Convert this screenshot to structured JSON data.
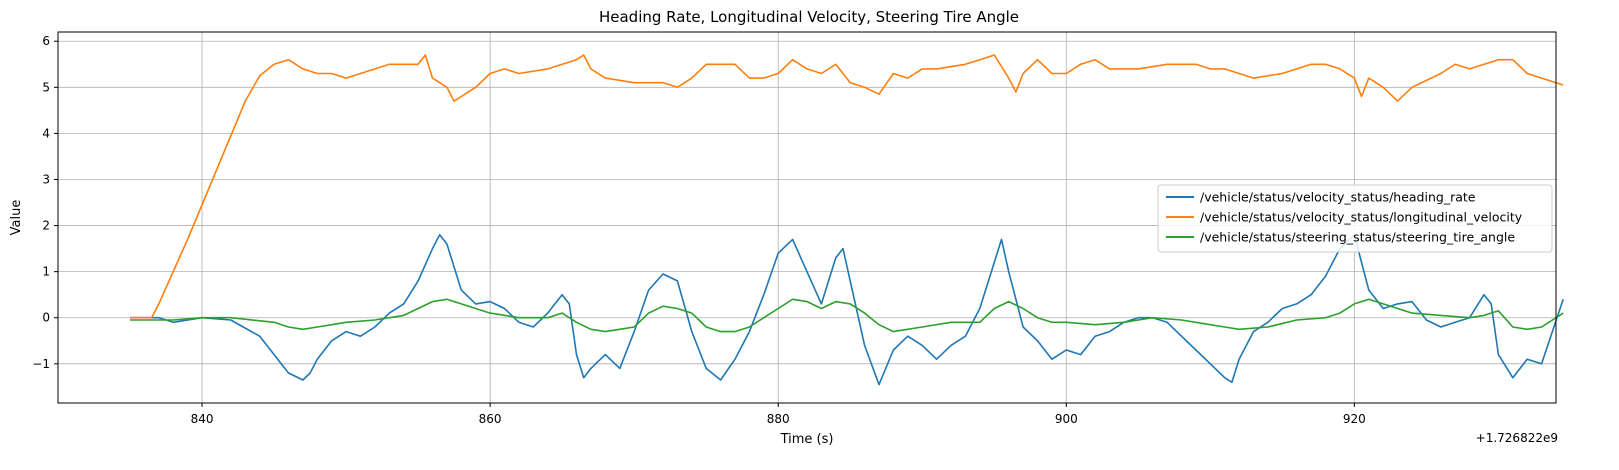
{
  "chart_data": {
    "type": "line",
    "title": "Heading Rate, Longitudinal Velocity, Steering Tire Angle",
    "xlabel": "Time (s)",
    "ylabel": "Value",
    "x_offset_label": "+1.726822e9",
    "xlim": [
      830,
      934
    ],
    "ylim": [
      -1.85,
      6.2
    ],
    "x_ticks": [
      840,
      860,
      880,
      900,
      920
    ],
    "y_ticks": [
      -1,
      0,
      1,
      2,
      3,
      4,
      5,
      6
    ],
    "grid": true,
    "legend_position": "center-right",
    "series": [
      {
        "name": "/vehicle/status/velocity_status/heading_rate",
        "color": "#1f77b4",
        "x": [
          835,
          837,
          838,
          840,
          842,
          844,
          845,
          846,
          847,
          847.5,
          848,
          849,
          850,
          851,
          852,
          853,
          854,
          855,
          856,
          856.5,
          857,
          858,
          859,
          860,
          861,
          862,
          863,
          864,
          865,
          865.5,
          866,
          866.5,
          867,
          868,
          869,
          870,
          871,
          872,
          873,
          874,
          875,
          876,
          877,
          878,
          879,
          880,
          881,
          882,
          883,
          884,
          884.5,
          885,
          886,
          887,
          888,
          889,
          890,
          891,
          892,
          893,
          894,
          895,
          895.5,
          896,
          897,
          898,
          899,
          900,
          901,
          902,
          903,
          904,
          905,
          906,
          907,
          908,
          909,
          910,
          911,
          911.5,
          912,
          913,
          914,
          915,
          916,
          917,
          918,
          919,
          920,
          921,
          922,
          923,
          924,
          925,
          926,
          927,
          928,
          929,
          929.5,
          930,
          931,
          932,
          933,
          934.5
        ],
        "values": [
          0.0,
          0.0,
          -0.1,
          0.0,
          -0.05,
          -0.4,
          -0.8,
          -1.2,
          -1.35,
          -1.2,
          -0.9,
          -0.5,
          -0.3,
          -0.4,
          -0.2,
          0.1,
          0.3,
          0.8,
          1.5,
          1.8,
          1.6,
          0.6,
          0.3,
          0.35,
          0.2,
          -0.1,
          -0.2,
          0.1,
          0.5,
          0.3,
          -0.8,
          -1.3,
          -1.1,
          -0.8,
          -1.1,
          -0.3,
          0.6,
          0.95,
          0.8,
          -0.3,
          -1.1,
          -1.35,
          -0.9,
          -0.3,
          0.5,
          1.4,
          1.7,
          1.0,
          0.3,
          1.3,
          1.5,
          0.8,
          -0.6,
          -1.45,
          -0.7,
          -0.4,
          -0.6,
          -0.9,
          -0.6,
          -0.4,
          0.2,
          1.2,
          1.7,
          1.0,
          -0.2,
          -0.5,
          -0.9,
          -0.7,
          -0.8,
          -0.4,
          -0.3,
          -0.1,
          0.0,
          0.0,
          -0.1,
          -0.4,
          -0.7,
          -1.0,
          -1.3,
          -1.4,
          -0.9,
          -0.3,
          -0.1,
          0.2,
          0.3,
          0.5,
          0.9,
          1.5,
          1.8,
          0.6,
          0.2,
          0.3,
          0.35,
          -0.05,
          -0.2,
          -0.1,
          0.0,
          0.5,
          0.3,
          -0.8,
          -1.3,
          -0.9,
          -1.0,
          0.4
        ]
      },
      {
        "name": "/vehicle/status/velocity_status/longitudinal_velocity",
        "color": "#ff7f0e",
        "x": [
          835,
          836.5,
          837,
          839,
          841,
          843,
          844,
          845,
          846,
          846.5,
          847,
          848,
          849,
          850,
          852,
          853,
          855,
          855.5,
          856,
          857,
          857.5,
          858,
          859,
          860,
          861,
          862,
          864,
          866,
          866.5,
          867,
          868,
          870,
          872,
          873,
          874,
          875,
          876,
          877,
          878,
          879,
          880,
          881,
          882,
          883,
          884,
          885,
          886,
          887,
          888,
          889,
          890,
          891,
          893,
          894,
          895,
          896,
          896.5,
          897,
          898,
          899,
          900,
          901,
          902,
          903,
          905,
          907,
          908,
          909,
          910,
          911,
          912,
          913,
          915,
          917,
          918,
          919,
          920,
          920.5,
          921,
          922,
          923,
          924,
          926,
          927,
          928,
          930,
          931,
          932,
          933,
          934.5
        ],
        "values": [
          0.0,
          0.0,
          0.3,
          1.7,
          3.2,
          4.7,
          5.25,
          5.5,
          5.6,
          5.5,
          5.4,
          5.3,
          5.3,
          5.2,
          5.4,
          5.5,
          5.5,
          5.7,
          5.2,
          5.0,
          4.7,
          4.8,
          5.0,
          5.3,
          5.4,
          5.3,
          5.4,
          5.6,
          5.7,
          5.4,
          5.2,
          5.1,
          5.1,
          5.0,
          5.2,
          5.5,
          5.5,
          5.5,
          5.2,
          5.2,
          5.3,
          5.6,
          5.4,
          5.3,
          5.5,
          5.1,
          5.0,
          4.85,
          5.3,
          5.2,
          5.4,
          5.4,
          5.5,
          5.6,
          5.7,
          5.2,
          4.9,
          5.3,
          5.6,
          5.3,
          5.3,
          5.5,
          5.6,
          5.4,
          5.4,
          5.5,
          5.5,
          5.5,
          5.4,
          5.4,
          5.3,
          5.2,
          5.3,
          5.5,
          5.5,
          5.4,
          5.2,
          4.8,
          5.2,
          5.0,
          4.7,
          5.0,
          5.3,
          5.5,
          5.4,
          5.6,
          5.6,
          5.3,
          5.2,
          5.05
        ]
      },
      {
        "name": "/vehicle/status/steering_status/steering_tire_angle",
        "color": "#2ca02c",
        "x": [
          835,
          838,
          840,
          842,
          845,
          846,
          847,
          848,
          849,
          850,
          852,
          853,
          854,
          855,
          856,
          857,
          858,
          860,
          862,
          864,
          865,
          866,
          867,
          868,
          869,
          870,
          871,
          872,
          873,
          874,
          875,
          876,
          877,
          878,
          879,
          880,
          881,
          882,
          883,
          884,
          885,
          886,
          887,
          888,
          890,
          892,
          894,
          895,
          896,
          897,
          898,
          899,
          900,
          902,
          904,
          906,
          908,
          910,
          911,
          912,
          914,
          916,
          918,
          919,
          920,
          921,
          922,
          923,
          924,
          926,
          928,
          929,
          930,
          931,
          932,
          933,
          934.5
        ],
        "values": [
          -0.05,
          -0.05,
          0.0,
          0.0,
          -0.1,
          -0.2,
          -0.25,
          -0.2,
          -0.15,
          -0.1,
          -0.05,
          0.0,
          0.05,
          0.2,
          0.35,
          0.4,
          0.3,
          0.1,
          0.0,
          0.0,
          0.1,
          -0.1,
          -0.25,
          -0.3,
          -0.25,
          -0.2,
          0.1,
          0.25,
          0.2,
          0.1,
          -0.2,
          -0.3,
          -0.3,
          -0.2,
          0.0,
          0.2,
          0.4,
          0.35,
          0.2,
          0.35,
          0.3,
          0.1,
          -0.15,
          -0.3,
          -0.2,
          -0.1,
          -0.1,
          0.2,
          0.35,
          0.2,
          0.0,
          -0.1,
          -0.1,
          -0.15,
          -0.1,
          0.0,
          -0.05,
          -0.15,
          -0.2,
          -0.25,
          -0.2,
          -0.05,
          0.0,
          0.1,
          0.3,
          0.4,
          0.3,
          0.2,
          0.1,
          0.05,
          0.0,
          0.05,
          0.15,
          -0.2,
          -0.25,
          -0.2,
          0.1
        ]
      }
    ]
  }
}
